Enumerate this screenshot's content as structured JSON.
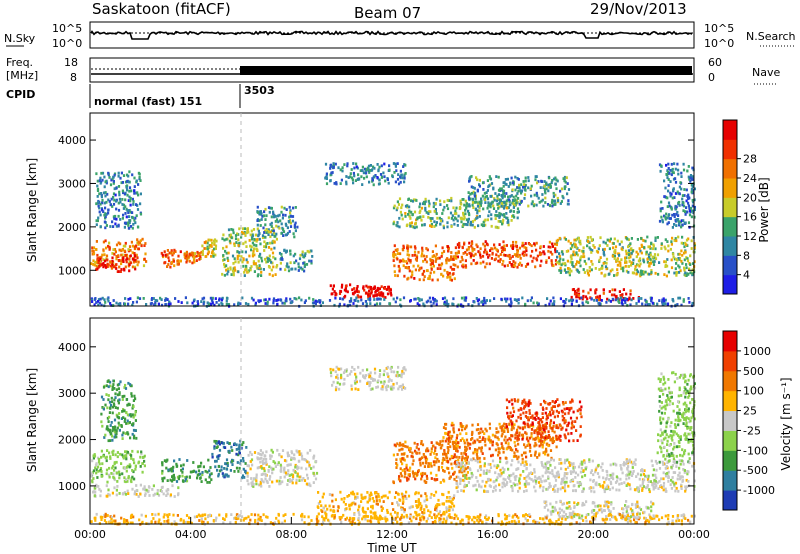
{
  "header": {
    "station": "Saskatoon (fitACF)",
    "beam": "Beam 07",
    "date": "29/Nov/2013"
  },
  "noise_panel": {
    "left_label": "N.Sky",
    "left_ticks": [
      "10^5",
      "10^0"
    ],
    "right_ticks": [
      "10^5",
      "10^0"
    ],
    "right_label": "N.Search",
    "right_line_style": "dotted"
  },
  "freq_panel": {
    "left_label_line1": "Freq.",
    "left_label_line2": "[MHz]",
    "left_ticks": [
      "18",
      "8"
    ],
    "right_ticks": [
      "60",
      "0"
    ],
    "right_label": "Nave",
    "right_line_style": "dotted"
  },
  "cpid_panel": {
    "label": "CPID",
    "segments": [
      {
        "text": "normal (fast) 151",
        "start_hour": 0
      },
      {
        "text": "3503",
        "start_hour": 6
      }
    ]
  },
  "chart_data": [
    {
      "type": "heatmap",
      "name": "power",
      "xlabel": "Time UT",
      "ylabel": "Slant Range [km]",
      "xlim_hours": [
        0,
        24
      ],
      "ylim": [
        200,
        4600
      ],
      "ytick_values": [
        1000,
        2000,
        3000,
        4000
      ],
      "ytick_labels": [
        "1000",
        "2000",
        "3000",
        "4000"
      ],
      "colorbar": {
        "label": "Power [dB]",
        "tick_labels": [
          "4",
          "8",
          "12",
          "16",
          "20",
          "24",
          "28"
        ],
        "colors": [
          "#1e1ee6",
          "#2850c8",
          "#2f86a3",
          "#3aa36a",
          "#c8cc2a",
          "#f0a000",
          "#f07000",
          "#f03000",
          "#e60000"
        ],
        "range": [
          0,
          30
        ]
      },
      "blobs": [
        {
          "t0": 0.0,
          "t1": 2.2,
          "r0": 1100,
          "r1": 1750,
          "v": 20
        },
        {
          "t0": 0.2,
          "t1": 1.8,
          "r0": 1000,
          "r1": 1400,
          "v": 28
        },
        {
          "t0": 0.2,
          "t1": 2.0,
          "r0": 2000,
          "r1": 3300,
          "v": 8
        },
        {
          "t0": 2.8,
          "t1": 3.6,
          "r0": 1100,
          "r1": 1500,
          "v": 22
        },
        {
          "t0": 3.7,
          "t1": 4.4,
          "r0": 1200,
          "r1": 1450,
          "v": 20
        },
        {
          "t0": 4.4,
          "t1": 5.0,
          "r0": 1350,
          "r1": 1750,
          "v": 16
        },
        {
          "t0": 5.2,
          "t1": 7.4,
          "r0": 900,
          "r1": 2000,
          "v": 14
        },
        {
          "t0": 6.6,
          "t1": 8.2,
          "r0": 1800,
          "r1": 2500,
          "v": 9
        },
        {
          "t0": 7.5,
          "t1": 8.8,
          "r0": 1000,
          "r1": 1500,
          "v": 10
        },
        {
          "t0": 9.5,
          "t1": 11.8,
          "r0": 400,
          "r1": 700,
          "v": 29
        },
        {
          "t0": 11.0,
          "t1": 12.0,
          "r0": 450,
          "r1": 650,
          "v": 29
        },
        {
          "t0": 9.3,
          "t1": 12.5,
          "r0": 3000,
          "r1": 3500,
          "v": 8
        },
        {
          "t0": 12.0,
          "t1": 14.5,
          "r0": 800,
          "r1": 1600,
          "v": 22
        },
        {
          "t0": 14.5,
          "t1": 18.5,
          "r0": 1100,
          "r1": 1700,
          "v": 24
        },
        {
          "t0": 12.0,
          "t1": 17.0,
          "r0": 2000,
          "r1": 2700,
          "v": 12
        },
        {
          "t0": 15.0,
          "t1": 19.0,
          "r0": 2500,
          "r1": 3200,
          "v": 10
        },
        {
          "t0": 18.5,
          "t1": 24.0,
          "r0": 900,
          "r1": 1800,
          "v": 14
        },
        {
          "t0": 19.0,
          "t1": 21.8,
          "r0": 350,
          "r1": 600,
          "v": 27
        },
        {
          "t0": 22.6,
          "t1": 24.0,
          "r0": 2000,
          "r1": 3500,
          "v": 8
        },
        {
          "t0": 0.0,
          "t1": 24.0,
          "r0": 200,
          "r1": 400,
          "v": 6
        }
      ]
    },
    {
      "type": "heatmap",
      "name": "velocity",
      "xlabel": "Time UT",
      "ylabel": "Slant Range [km]",
      "xlim_hours": [
        0,
        24
      ],
      "ylim": [
        200,
        4600
      ],
      "ytick_values": [
        1000,
        2000,
        3000,
        4000
      ],
      "ytick_labels": [
        "1000",
        "2000",
        "3000",
        "4000"
      ],
      "xtick_labels": [
        "00:00",
        "04:00",
        "08:00",
        "12:00",
        "16:00",
        "20:00",
        "00:00"
      ],
      "colorbar": {
        "label": "Velocity [m s⁻¹]",
        "tick_labels": [
          "1000",
          "500",
          "100",
          "25",
          "-25",
          "-100",
          "-500",
          "-1000"
        ],
        "colors": [
          "#1e3cb4",
          "#2f7fa0",
          "#3c9a3c",
          "#8cd24b",
          "#c8c8c8",
          "#ffb400",
          "#f07800",
          "#f04000",
          "#e60000"
        ]
      },
      "blobs": [
        {
          "t0": 0.0,
          "t1": 2.2,
          "r0": 1100,
          "r1": 1800,
          "cls": 3
        },
        {
          "t0": 0.4,
          "t1": 1.8,
          "r0": 2000,
          "r1": 3300,
          "cls": 2
        },
        {
          "t0": 0.0,
          "t1": 3.5,
          "r0": 800,
          "r1": 1050,
          "cls": 4
        },
        {
          "t0": 2.8,
          "t1": 4.8,
          "r0": 1100,
          "r1": 1600,
          "cls": 2
        },
        {
          "t0": 4.8,
          "t1": 6.2,
          "r0": 1200,
          "r1": 2000,
          "cls": 1
        },
        {
          "t0": 6.2,
          "t1": 9.0,
          "r0": 1000,
          "r1": 1800,
          "cls": 4
        },
        {
          "t0": 9.0,
          "t1": 14.5,
          "r0": 300,
          "r1": 900,
          "cls": 5
        },
        {
          "t0": 9.5,
          "t1": 12.5,
          "r0": 3100,
          "r1": 3600,
          "cls": 4
        },
        {
          "t0": 12.0,
          "t1": 15.0,
          "r0": 1100,
          "r1": 2000,
          "cls": 6
        },
        {
          "t0": 14.0,
          "t1": 18.5,
          "r0": 1600,
          "r1": 2400,
          "cls": 6
        },
        {
          "t0": 16.5,
          "t1": 19.5,
          "r0": 2000,
          "r1": 2900,
          "cls": 7
        },
        {
          "t0": 14.5,
          "t1": 24.0,
          "r0": 900,
          "r1": 1600,
          "cls": 4
        },
        {
          "t0": 18.0,
          "t1": 22.5,
          "r0": 300,
          "r1": 700,
          "cls": 4
        },
        {
          "t0": 22.5,
          "t1": 24.0,
          "r0": 1500,
          "r1": 3500,
          "cls": 3
        },
        {
          "t0": 0.0,
          "t1": 24.0,
          "r0": 200,
          "r1": 420,
          "cls": 5
        }
      ]
    }
  ]
}
